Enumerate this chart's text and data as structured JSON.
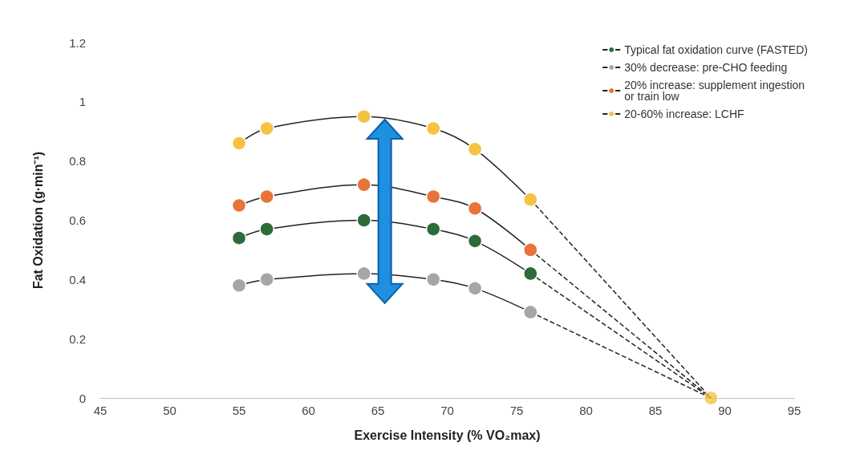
{
  "chart_data": {
    "type": "line",
    "xlabel": "Exercise Intensity (% VO₂max)",
    "ylabel": "Fat Oxidation (g·min⁻¹)",
    "xlim": [
      45,
      95
    ],
    "xticks": [
      45,
      50,
      55,
      60,
      65,
      70,
      75,
      80,
      85,
      90,
      95
    ],
    "ylim": [
      0,
      1.2
    ],
    "yticks": [
      0,
      0.2,
      0.4,
      0.6,
      0.8,
      1,
      1.2
    ],
    "grid": false,
    "legend": "top right",
    "marker": "circle",
    "series": [
      {
        "name": "Typical fat oxidation curve (FASTED)",
        "color": "#2e6b3a",
        "x": [
          55,
          57,
          64,
          69,
          72,
          76
        ],
        "values": [
          0.54,
          0.57,
          0.6,
          0.57,
          0.53,
          0.42
        ]
      },
      {
        "name": "30% decrease: pre-CHO feeding",
        "color": "#a6a6a6",
        "x": [
          55,
          57,
          64,
          69,
          72,
          76
        ],
        "values": [
          0.38,
          0.4,
          0.42,
          0.4,
          0.37,
          0.29
        ]
      },
      {
        "name": "20% increase: supplement ingestion or train low",
        "color": "#e8743b",
        "x": [
          55,
          57,
          64,
          69,
          72,
          76
        ],
        "values": [
          0.65,
          0.68,
          0.72,
          0.68,
          0.64,
          0.5
        ]
      },
      {
        "name": "20-60% increase: LCHF",
        "color": "#f5c242",
        "x": [
          55,
          57,
          64,
          69,
          72,
          76
        ],
        "values": [
          0.86,
          0.91,
          0.95,
          0.91,
          0.84,
          0.67
        ]
      },
      {
        "color": "#222222",
        "x": [
          76,
          89
        ],
        "values": [
          0.42,
          0
        ],
        "line_style": "dashed",
        "marker": "none"
      },
      {
        "color": "#222222",
        "x": [
          76,
          89
        ],
        "values": [
          0.29,
          0
        ],
        "line_style": "dashed",
        "marker": "none"
      },
      {
        "color": "#222222",
        "x": [
          76,
          89
        ],
        "values": [
          0.5,
          0
        ],
        "line_style": "dashed",
        "marker": "none"
      },
      {
        "color": "#222222",
        "x": [
          76,
          89
        ],
        "values": [
          0.67,
          0
        ],
        "line_style": "dashed",
        "marker": "none"
      },
      {
        "type": "scatter",
        "color": "#f5c242",
        "x": [
          89
        ],
        "values": [
          0
        ]
      }
    ]
  }
}
